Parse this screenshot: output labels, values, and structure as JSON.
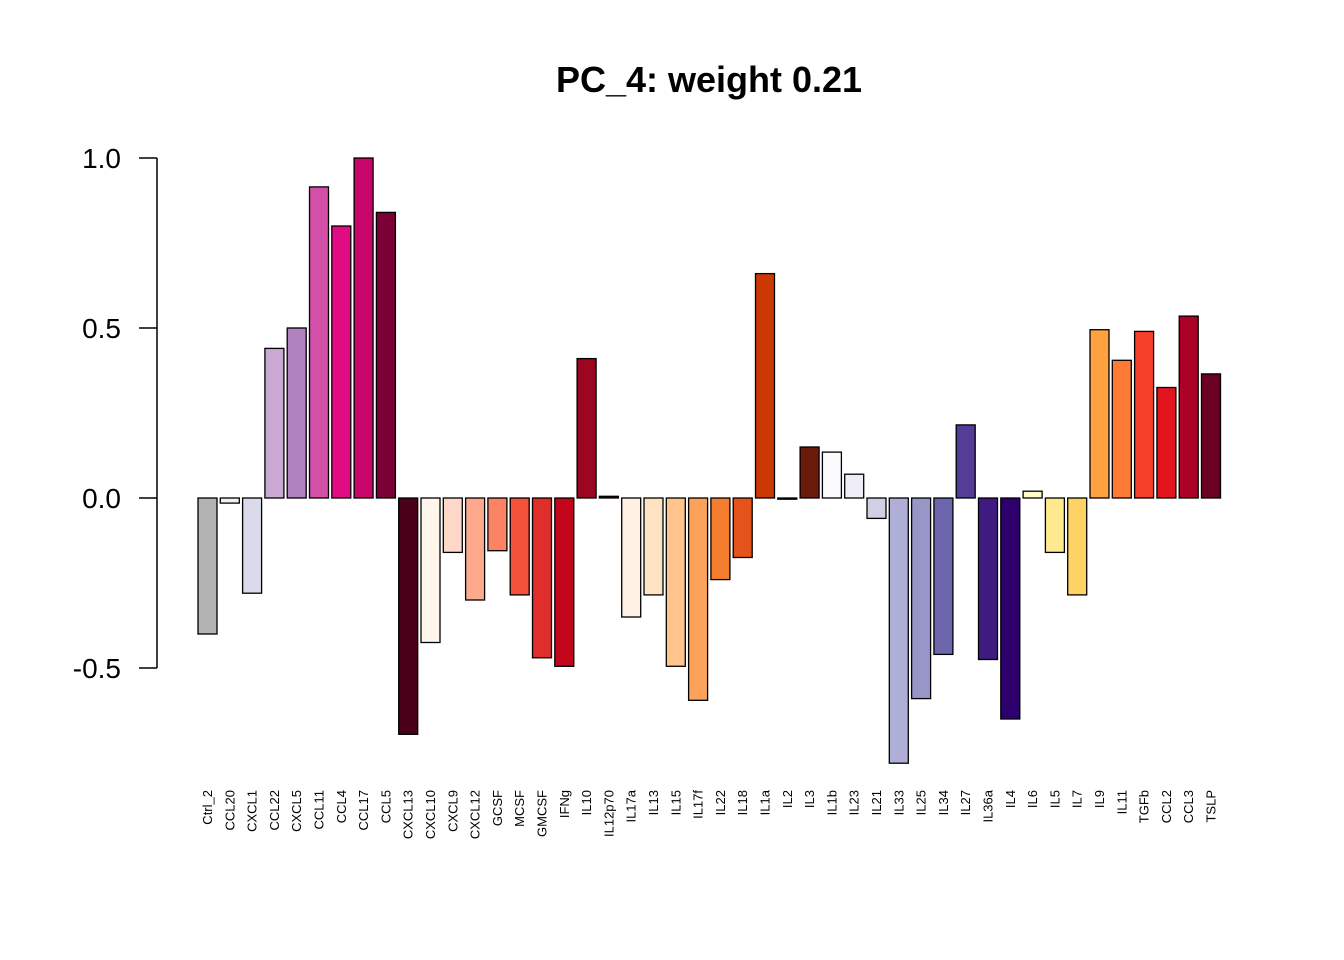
{
  "chart_data": {
    "type": "bar",
    "title": "PC_4: weight 0.21",
    "xlabel": "",
    "ylabel": "",
    "ylim": [
      -0.8,
      1.0
    ],
    "y_ticks": [
      "-0.5",
      "0.0",
      "0.5",
      "1.0"
    ],
    "y_tick_values": [
      -0.5,
      0.0,
      0.5,
      1.0
    ],
    "grid": false,
    "legend": "none",
    "categories": [
      "Ctrl_2",
      "CCL20",
      "CXCL1",
      "CCL22",
      "CXCL5",
      "CCL11",
      "CCL4",
      "CCL17",
      "CCL5",
      "CXCL13",
      "CXCL10",
      "CXCL9",
      "CXCL12",
      "GCSF",
      "MCSF",
      "GMCSF",
      "IFNg",
      "IL10",
      "IL12p70",
      "IL17a",
      "IL13",
      "IL15",
      "IL17f",
      "IL22",
      "IL18",
      "IL1a",
      "IL2",
      "IL3",
      "IL1b",
      "IL23",
      "IL21",
      "IL33",
      "IL25",
      "IL34",
      "IL27",
      "IL36a",
      "IL4",
      "IL6",
      "IL5",
      "IL7",
      "IL9",
      "IL11",
      "TGFb",
      "CCL2",
      "CCL3",
      "TSLP"
    ],
    "values": [
      -0.4,
      -0.015,
      -0.28,
      0.44,
      0.5,
      0.915,
      0.8,
      1.0,
      0.84,
      -0.695,
      -0.425,
      -0.16,
      -0.3,
      -0.155,
      -0.285,
      -0.47,
      -0.495,
      0.41,
      0.005,
      -0.35,
      -0.285,
      -0.495,
      -0.595,
      -0.24,
      -0.175,
      0.66,
      0.0,
      0.15,
      0.135,
      0.07,
      -0.06,
      -0.78,
      -0.59,
      -0.46,
      0.215,
      -0.475,
      -0.65,
      0.02,
      -0.16,
      -0.285,
      0.495,
      0.405,
      0.49,
      0.325,
      0.535,
      0.365
    ],
    "colors": [
      "#B3B3B3",
      "#F2F0F7",
      "#DADAEB",
      "#C9A9D3",
      "#B182C0",
      "#D44FA7",
      "#E10C83",
      "#C8066A",
      "#7A0036",
      "#4A0018",
      "#FFF5EB",
      "#FDD8C8",
      "#FCA98D",
      "#FC8464",
      "#F5523C",
      "#E02E2C",
      "#C4061C",
      "#9B0720",
      "#5A0012",
      "#FFF0E3",
      "#FEE3C3",
      "#FEC48C",
      "#FDA25A",
      "#F57D2E",
      "#E4541A",
      "#CC3804",
      "#7F2704",
      "#6A1A0A",
      "#FBFAFD",
      "#EFEEF6",
      "#CFCFE6",
      "#AEAED6",
      "#9896C7",
      "#6C67AD",
      "#533D98",
      "#3F1A80",
      "#2E006E",
      "#FFFBC8",
      "#FEE98F",
      "#FED364",
      "#FDA23F",
      "#FD7B34",
      "#F6402A",
      "#E2151F",
      "#AC0026",
      "#6A0022"
    ]
  }
}
